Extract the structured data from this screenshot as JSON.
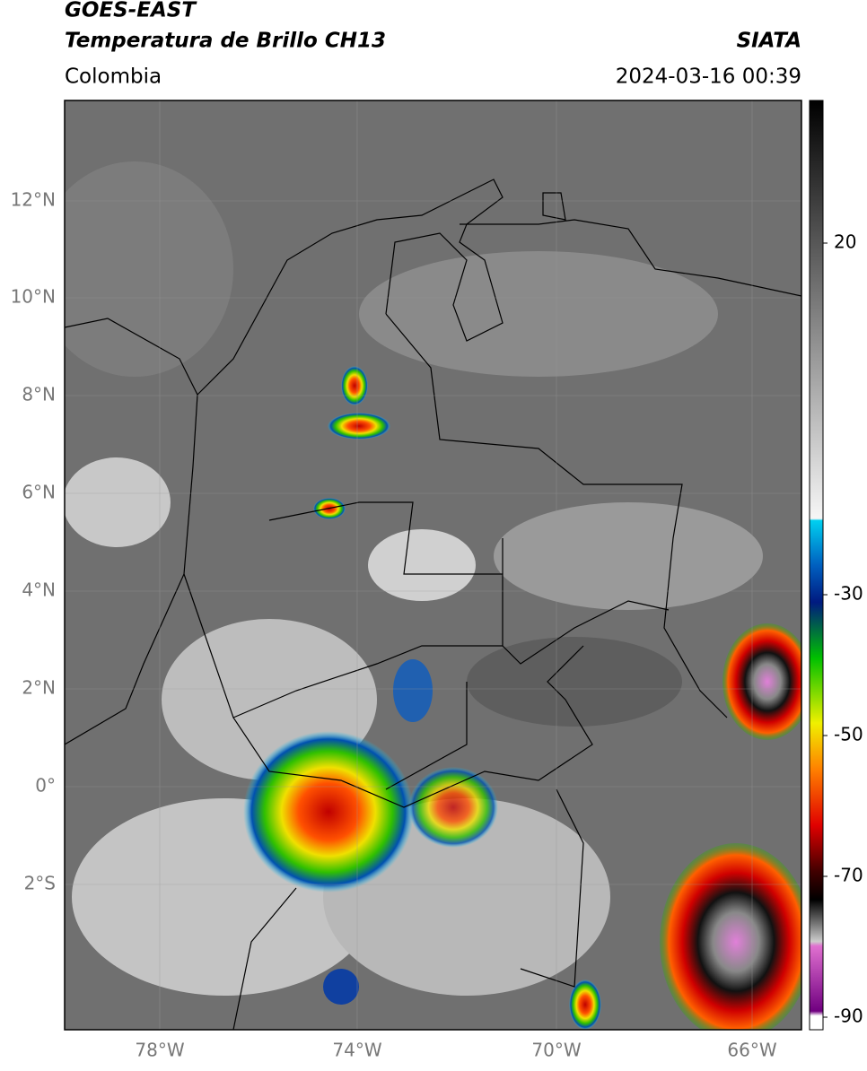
{
  "header": {
    "title": "GOES-EAST",
    "subtitle": "Temperatura de Brillo CH13",
    "region": "Colombia",
    "source": "SIATA",
    "datetime": "2024-03-16 00:39"
  },
  "map": {
    "lat_labels": [
      "12°N",
      "10°N",
      "8°N",
      "6°N",
      "4°N",
      "2°N",
      "0°",
      "2°S"
    ],
    "lon_labels": [
      "78°W",
      "74°W",
      "70°W",
      "66°W"
    ]
  },
  "colorbar": {
    "labels": [
      "20",
      "-30",
      "-50",
      "-70",
      "-90"
    ]
  }
}
